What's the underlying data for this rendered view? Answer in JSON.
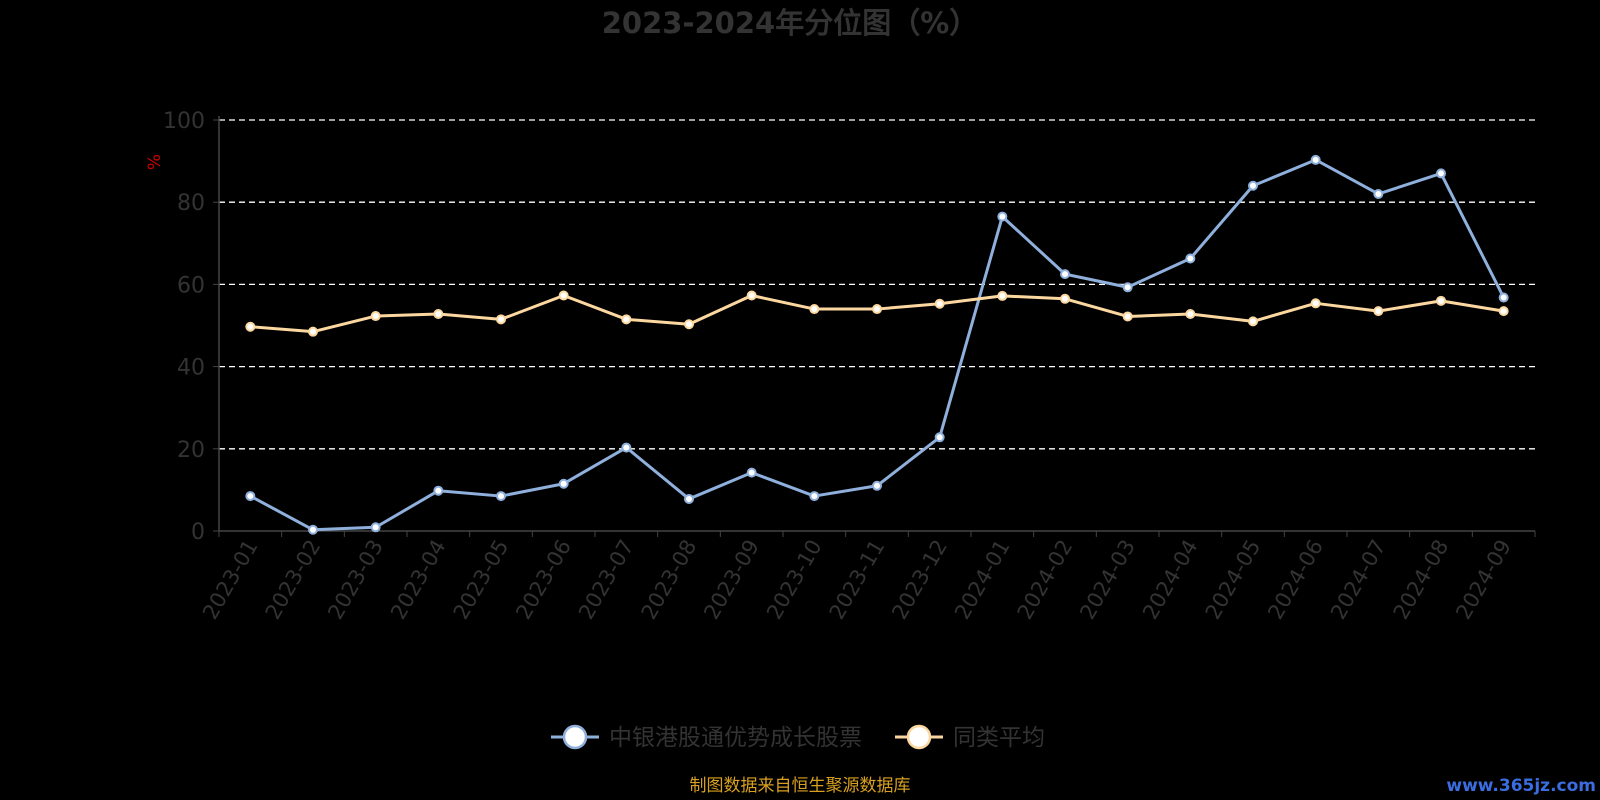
{
  "chart_data": {
    "type": "line",
    "title": "2023-2024年分位图（%）",
    "ylabel": "%",
    "ylim": [
      0,
      100
    ],
    "yticks": [
      0,
      20,
      40,
      60,
      80,
      100
    ],
    "grid": true,
    "legend_position": "bottom",
    "categories": [
      "2023-01",
      "2023-02",
      "2023-03",
      "2023-04",
      "2023-05",
      "2023-06",
      "2023-07",
      "2023-08",
      "2023-09",
      "2023-10",
      "2023-11",
      "2023-12",
      "2024-01",
      "2024-02",
      "2024-03",
      "2024-04",
      "2024-05",
      "2024-06",
      "2024-07",
      "2024-08",
      "2024-09"
    ],
    "series": [
      {
        "name": "中银港股通优势成长股票",
        "color": "#8fb0dc",
        "values": [
          8.5,
          0.3,
          0.9,
          9.8,
          8.5,
          11.5,
          20.3,
          7.8,
          14.2,
          8.5,
          11.0,
          22.8,
          76.5,
          62.5,
          59.3,
          66.3,
          84.0,
          90.3,
          82.0,
          87.0,
          56.8
        ]
      },
      {
        "name": "同类平均",
        "color": "#fcd8a0",
        "values": [
          49.7,
          48.5,
          52.3,
          52.8,
          51.5,
          57.3,
          51.5,
          50.3,
          57.3,
          54.0,
          54.0,
          55.3,
          57.2,
          56.5,
          52.2,
          52.8,
          51.0,
          55.4,
          53.5,
          56.0,
          53.5
        ]
      }
    ]
  },
  "source_note": "制图数据来自恒生聚源数据库",
  "watermark": "www.365jz.com"
}
